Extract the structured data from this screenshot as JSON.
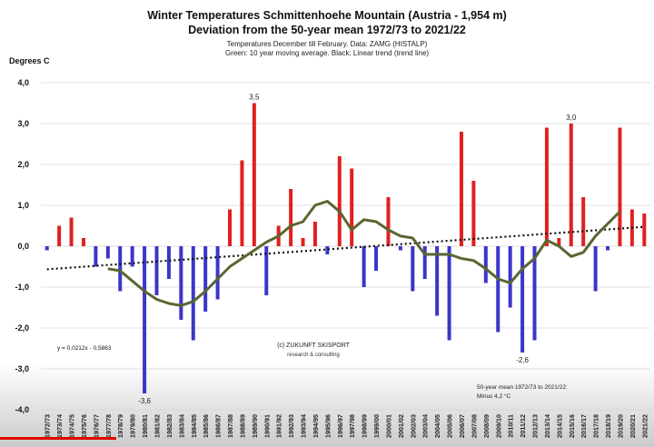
{
  "header": {
    "title_line1": "Winter Temperatures Schmittenhoehe Mountain (Austria - 1,954 m)",
    "title_line2": "Deviation from the 50-year mean 1972/73 to 2021/22",
    "subtitle_line1": "Temperatures December till February. Data:  ZAMG (HISTALP)",
    "subtitle_line2": "Green: 10 year moving average. Black: Linear trend (trend line)",
    "y_unit": "Degrees C"
  },
  "colors": {
    "positive": "#e02020",
    "negative": "#3a36c8",
    "moving_average": "#5a6630",
    "trend": "#111111",
    "grid": "#d6d6d6"
  },
  "annotations": {
    "trend_equation": "y = 0,0212x - 0,5863",
    "credit_line1": "(c) ZUKUNFT SKISPORT",
    "credit_line2": "research & consulting",
    "mean_note_line1": "50-year mean 1972/73 to 2021/22:",
    "mean_note_line2": "Minus 4,2 °C"
  },
  "chart_data": {
    "type": "bar",
    "ylim": [
      -4.0,
      4.0
    ],
    "y_ticks": [
      "4,0",
      "3,0",
      "2,0",
      "1,0",
      "0,0",
      "-1,0",
      "-2,0",
      "-3,0",
      "-4,0"
    ],
    "grid": true,
    "categories": [
      "1972/73",
      "1973/74",
      "1974/75",
      "1975/76",
      "1976/77",
      "1977/78",
      "1978/79",
      "1979/80",
      "1980/81",
      "1981/82",
      "1982/83",
      "1983/84",
      "1984/85",
      "1985/86",
      "1986/87",
      "1987/88",
      "1988/89",
      "1989/90",
      "1990/91",
      "1991/92",
      "1992/93",
      "1993/94",
      "1994/95",
      "1995/96",
      "1996/97",
      "1997/98",
      "1998/99",
      "1999/00",
      "2000/01",
      "2001/02",
      "2002/03",
      "2003/04",
      "2004/05",
      "2005/06",
      "2006/07",
      "2007/08",
      "2008/09",
      "2009/10",
      "2010/11",
      "2011/12",
      "2012/13",
      "2013/14",
      "2014/15",
      "2015/16",
      "2016/17",
      "2017/18",
      "2018/19",
      "2019/20",
      "2020/21",
      "2021/22"
    ],
    "values": [
      -0.1,
      0.5,
      0.7,
      0.2,
      -0.5,
      -0.3,
      -1.1,
      -0.5,
      -3.6,
      -1.2,
      -0.8,
      -1.8,
      -2.3,
      -1.6,
      -1.3,
      0.9,
      2.1,
      3.5,
      -1.2,
      0.5,
      1.4,
      0.2,
      0.6,
      -0.2,
      2.2,
      1.9,
      -1.0,
      -0.6,
      1.2,
      -0.1,
      -1.1,
      -0.8,
      -1.7,
      -2.3,
      2.8,
      1.6,
      -0.9,
      -2.1,
      -1.5,
      -2.6,
      -2.3,
      2.9,
      0.2,
      3.0,
      1.2,
      -1.1,
      -0.1,
      2.9,
      0.9,
      0.8
    ],
    "value_labels": [
      {
        "category": "1980/81",
        "text": "-3,6"
      },
      {
        "category": "1989/90",
        "text": "3,5"
      },
      {
        "category": "2011/12",
        "text": "-2,6"
      },
      {
        "category": "2015/16",
        "text": "3,0"
      }
    ],
    "moving_average": {
      "start_category": "1977/78",
      "values": [
        -0.55,
        -0.6,
        -0.85,
        -1.1,
        -1.3,
        -1.4,
        -1.45,
        -1.35,
        -1.1,
        -0.8,
        -0.5,
        -0.3,
        -0.1,
        0.1,
        0.25,
        0.5,
        0.6,
        1.0,
        1.1,
        0.85,
        0.4,
        0.65,
        0.6,
        0.4,
        0.25,
        0.2,
        -0.2,
        -0.2,
        -0.2,
        -0.3,
        -0.35,
        -0.55,
        -0.8,
        -0.9,
        -0.55,
        -0.3,
        0.15,
        0.0,
        -0.25,
        -0.15,
        0.25,
        0.55,
        0.85
      ]
    },
    "trend": {
      "slope": 0.0212,
      "intercept": -0.5863
    }
  }
}
